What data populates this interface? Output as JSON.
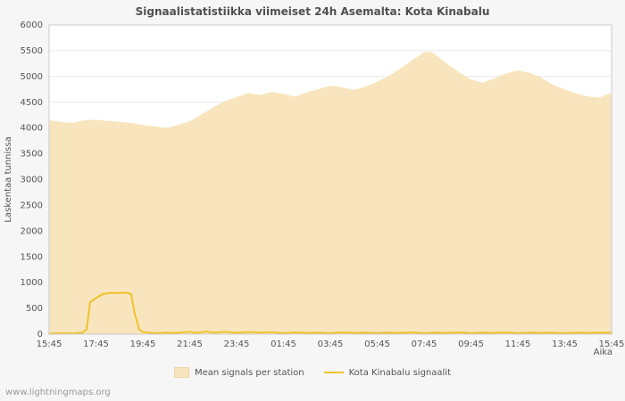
{
  "title": "Signaalistatistiikka viimeiset 24h Asemalta: Kota Kinabalu",
  "watermark": "www.lightningmaps.org",
  "chart_data": {
    "type": "area",
    "title": "Signaalistatistiikka viimeiset 24h Asemalta: Kota Kinabalu",
    "xlabel": "Aika",
    "ylabel": "Laskentaa tunnissa",
    "ylim": [
      0,
      6000
    ],
    "ytick_step": 500,
    "grid": "horizontal",
    "legend_position": "bottom-center",
    "x_ticks": [
      "15:45",
      "17:45",
      "19:45",
      "21:45",
      "23:45",
      "01:45",
      "03:45",
      "05:45",
      "07:45",
      "09:45",
      "11:45",
      "13:45",
      "15:45"
    ],
    "x_range_hours": [
      0,
      24
    ],
    "colors": {
      "area_fill": "#f8e5bd",
      "line": "#eec22e",
      "grid": "#e8e8e8",
      "border": "#cccccc",
      "text": "#545454"
    },
    "series": [
      {
        "name": "Mean signals per station",
        "kind": "area",
        "points": [
          [
            0,
            4150
          ],
          [
            0.5,
            4120
          ],
          [
            1,
            4100
          ],
          [
            1.5,
            4150
          ],
          [
            2,
            4160
          ],
          [
            2.5,
            4140
          ],
          [
            3,
            4120
          ],
          [
            3.5,
            4100
          ],
          [
            4,
            4060
          ],
          [
            4.5,
            4030
          ],
          [
            5,
            4000
          ],
          [
            5.5,
            4060
          ],
          [
            6,
            4130
          ],
          [
            6.5,
            4260
          ],
          [
            7,
            4400
          ],
          [
            7.5,
            4520
          ],
          [
            8,
            4600
          ],
          [
            8.5,
            4680
          ],
          [
            9,
            4640
          ],
          [
            9.5,
            4700
          ],
          [
            10,
            4660
          ],
          [
            10.5,
            4610
          ],
          [
            11,
            4690
          ],
          [
            11.5,
            4760
          ],
          [
            12,
            4820
          ],
          [
            12.5,
            4790
          ],
          [
            13,
            4740
          ],
          [
            13.5,
            4800
          ],
          [
            14,
            4900
          ],
          [
            14.5,
            5010
          ],
          [
            15,
            5160
          ],
          [
            15.5,
            5320
          ],
          [
            16,
            5470
          ],
          [
            16.3,
            5480
          ],
          [
            16.7,
            5350
          ],
          [
            17,
            5240
          ],
          [
            17.5,
            5080
          ],
          [
            18,
            4940
          ],
          [
            18.5,
            4880
          ],
          [
            19,
            4960
          ],
          [
            19.5,
            5060
          ],
          [
            20,
            5120
          ],
          [
            20.5,
            5070
          ],
          [
            21,
            4980
          ],
          [
            21.5,
            4840
          ],
          [
            22,
            4750
          ],
          [
            22.5,
            4670
          ],
          [
            23,
            4610
          ],
          [
            23.5,
            4590
          ],
          [
            24,
            4690
          ]
        ]
      },
      {
        "name": "Kota Kinabalu signaalit",
        "kind": "line",
        "points": [
          [
            0,
            10
          ],
          [
            0.5,
            20
          ],
          [
            1,
            15
          ],
          [
            1.4,
            25
          ],
          [
            1.6,
            90
          ],
          [
            1.75,
            620
          ],
          [
            2,
            700
          ],
          [
            2.3,
            780
          ],
          [
            2.6,
            800
          ],
          [
            3,
            800
          ],
          [
            3.3,
            805
          ],
          [
            3.5,
            780
          ],
          [
            3.65,
            400
          ],
          [
            3.85,
            90
          ],
          [
            4,
            40
          ],
          [
            4.5,
            20
          ],
          [
            5,
            30
          ],
          [
            5.5,
            25
          ],
          [
            6,
            45
          ],
          [
            6.3,
            25
          ],
          [
            6.7,
            50
          ],
          [
            7,
            30
          ],
          [
            7.5,
            45
          ],
          [
            8,
            25
          ],
          [
            8.5,
            40
          ],
          [
            9,
            30
          ],
          [
            9.5,
            40
          ],
          [
            10,
            20
          ],
          [
            10.5,
            35
          ],
          [
            11,
            25
          ],
          [
            11.5,
            30
          ],
          [
            12,
            20
          ],
          [
            12.5,
            35
          ],
          [
            13,
            25
          ],
          [
            13.5,
            30
          ],
          [
            14,
            20
          ],
          [
            14.5,
            30
          ],
          [
            15,
            25
          ],
          [
            15.5,
            35
          ],
          [
            16,
            20
          ],
          [
            16.5,
            30
          ],
          [
            17,
            25
          ],
          [
            17.5,
            35
          ],
          [
            18,
            20
          ],
          [
            18.5,
            30
          ],
          [
            19,
            25
          ],
          [
            19.5,
            35
          ],
          [
            20,
            20
          ],
          [
            20.5,
            30
          ],
          [
            21,
            25
          ],
          [
            21.5,
            30
          ],
          [
            22,
            20
          ],
          [
            22.5,
            30
          ],
          [
            23,
            25
          ],
          [
            23.5,
            30
          ],
          [
            24,
            25
          ]
        ]
      }
    ]
  }
}
